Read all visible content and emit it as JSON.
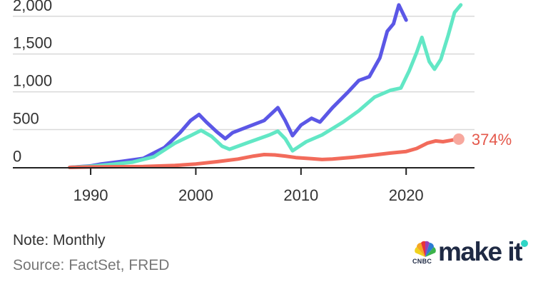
{
  "chart_data": {
    "type": "line",
    "y_ticks": [
      0,
      500,
      1000,
      1500,
      2000
    ],
    "y_tick_labels": [
      "0",
      "500",
      "1,000",
      "1,500",
      "2,000"
    ],
    "x_ticks": [
      1990,
      2000,
      2010,
      2020
    ],
    "x_tick_labels": [
      "1990",
      "2000",
      "2010",
      "2020"
    ],
    "xlim": [
      1982.6,
      2026.5
    ],
    "ylim": [
      -5,
      2215
    ],
    "grid": true,
    "series": [
      {
        "color": "#5b57e6",
        "x": [
          1988,
          1990,
          1991,
          1993,
          1995,
          1997,
          1998.5,
          1999.5,
          2000.3,
          2001,
          2002,
          2002.8,
          2003.5,
          2005,
          2006.5,
          2007.8,
          2008.5,
          2009.2,
          2010,
          2011,
          2011.8,
          2013,
          2014.5,
          2015.5,
          2016.5,
          2017.5,
          2018.2,
          2018.8,
          2019.3,
          2020.0
        ],
        "y": [
          0,
          20,
          45,
          80,
          120,
          260,
          460,
          620,
          700,
          600,
          470,
          380,
          460,
          540,
          620,
          790,
          620,
          420,
          560,
          650,
          600,
          790,
          1000,
          1150,
          1200,
          1450,
          1800,
          1900,
          2150,
          1950
        ]
      },
      {
        "color": "#62e7c5",
        "x": [
          1988,
          1990,
          1992,
          1994,
          1996,
          1998,
          1999.5,
          2000.5,
          2001.5,
          2002.5,
          2003.2,
          2005,
          2007,
          2007.8,
          2008.5,
          2009.2,
          2010.5,
          2012,
          2014,
          2015.5,
          2017,
          2018.5,
          2019.5,
          2020.3,
          2021,
          2021.5,
          2022.2,
          2022.7,
          2023.3,
          2024,
          2024.6,
          2025.2
        ],
        "y": [
          0,
          15,
          40,
          70,
          140,
          320,
          420,
          490,
          410,
          280,
          240,
          330,
          430,
          480,
          380,
          220,
          340,
          430,
          600,
          750,
          930,
          1020,
          1050,
          1280,
          1520,
          1720,
          1400,
          1300,
          1430,
          1750,
          2050,
          2150
        ]
      },
      {
        "color": "#f26b5b",
        "x": [
          1988,
          1990,
          1992,
          1995,
          1998,
          2000,
          2002,
          2004,
          2005.5,
          2006.5,
          2007.5,
          2008.5,
          2009.5,
          2011,
          2012,
          2013,
          2015,
          2017,
          2018.5,
          2020,
          2021,
          2022,
          2022.8,
          2023.5,
          2024.3,
          2025
        ],
        "y": [
          0,
          5,
          8,
          12,
          25,
          45,
          75,
          110,
          150,
          170,
          165,
          150,
          130,
          115,
          105,
          110,
          135,
          165,
          190,
          210,
          250,
          320,
          350,
          340,
          360,
          374
        ]
      }
    ],
    "end_label": "374%",
    "end_label_color": "#e4584b"
  },
  "note": "Note: Monthly",
  "source": "Source: FactSet, FRED",
  "brand": {
    "name": "make it",
    "sub": "CNBC",
    "logo_icon": "cnbc-peacock-icon"
  }
}
